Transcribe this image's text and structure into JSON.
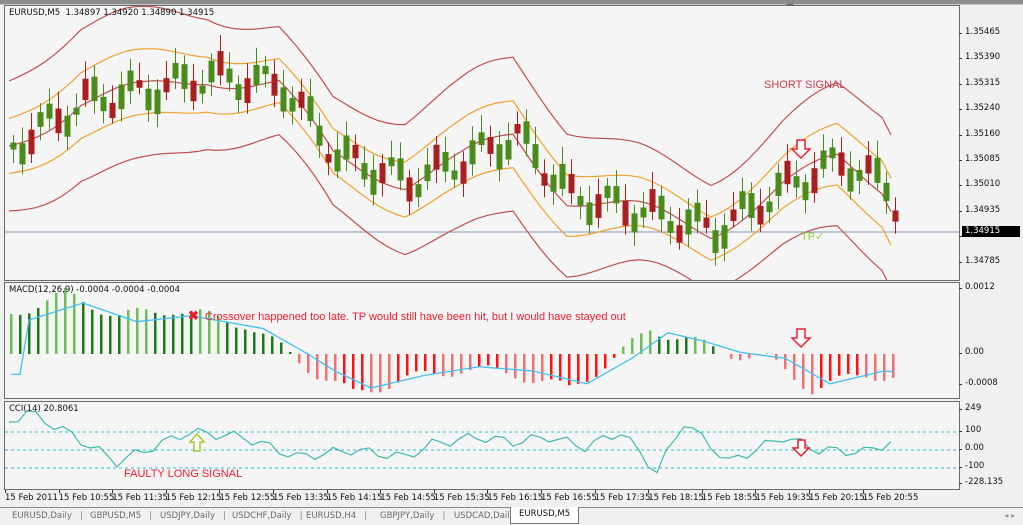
{
  "window": {
    "symbol_header": "EURUSD,M5  1.34897 1.34920 1.34890 1.34915"
  },
  "colors": {
    "bull_candle": "#4a8c1c",
    "bear_candle": "#aa1e1e",
    "outer_band": "#c05050",
    "inner_band": "#f0a030",
    "macd_pos_dark": "#1a7a1a",
    "macd_pos_light": "#6abf5a",
    "macd_neg_dark": "#ff1010",
    "macd_neg_light": "#f07070",
    "signal_line": "#44c0f0",
    "cci_line": "#40b8b0",
    "cci_levels": "#30c0d0",
    "annotation_red": "#ee1c2e",
    "current_price_line": "#8899bb"
  },
  "main_axis": {
    "ticks": [
      "1.35465",
      "1.35390",
      "1.35315",
      "1.35240",
      "1.35160",
      "1.35085",
      "1.35010",
      "1.34935",
      "1.34860",
      "1.34785"
    ],
    "current_price": "1.34915"
  },
  "macd_pane": {
    "label": "MACD(12,26,9) -0.0004 -0.0004 -0.0004",
    "ticks": [
      "0.0012",
      "0.00",
      "-0.0008"
    ]
  },
  "cci_pane": {
    "label": "CCI(14) 20.8061",
    "ticks": [
      "249",
      "100",
      "0.00",
      "-100",
      "-228.135"
    ]
  },
  "annotations": {
    "short_signal": "SHORT SIGNAL",
    "tp": "TP",
    "tp_check": "✓",
    "crossover_icon": "✖",
    "crossover_note": "Crossover happened too late. TP would still have been hit, but I would have stayed out",
    "faulty_long": "FAULTY LONG SIGNAL"
  },
  "x_axis": {
    "labels": [
      "15 Feb 2011",
      "15 Feb 10:55",
      "15 Feb 11:35",
      "15 Feb 12:15",
      "15 Feb 12:55",
      "15 Feb 13:35",
      "15 Feb 14:15",
      "15 Feb 14:55",
      "15 Feb 15:35",
      "15 Feb 16:15",
      "15 Feb 16:55",
      "15 Feb 17:35",
      "15 Feb 18:15",
      "15 Feb 18:55",
      "15 Feb 19:35",
      "15 Feb 20:15",
      "15 Feb 20:55"
    ]
  },
  "tabs": [
    {
      "label": "EURUSD,Daily",
      "active": false
    },
    {
      "label": "GBPUSD,M5",
      "active": false
    },
    {
      "label": "USDJPY,Daily",
      "active": false
    },
    {
      "label": "USDCHF,Daily",
      "active": false
    },
    {
      "label": "EURUSD,H4",
      "active": false
    },
    {
      "label": "GBPJPY,Daily",
      "active": false
    },
    {
      "label": "USDCAD,Daily",
      "active": false
    },
    {
      "label": "EURUSD,M5",
      "active": true
    }
  ],
  "scroll_arrows": "◂  ▸",
  "chart_data": [
    {
      "type": "candlestick",
      "title": "EURUSD,M5",
      "ohlc_header": {
        "open": 1.34897,
        "high": 1.3492,
        "low": 1.3489,
        "close": 1.34915
      },
      "ylim": [
        1.3476,
        1.3552
      ],
      "y_ticks": [
        1.35465,
        1.3539,
        1.35315,
        1.3524,
        1.3516,
        1.35085,
        1.3501,
        1.34935,
        1.3486,
        1.34785
      ],
      "overlays": [
        "Bollinger outer bands (dark red)",
        "Bollinger inner bands (orange)",
        "Bollinger middle (dark red)"
      ],
      "x_ticks": [
        "15 Feb 2011",
        "15 Feb 10:55",
        "15 Feb 11:35",
        "15 Feb 12:15",
        "15 Feb 12:55",
        "15 Feb 13:35",
        "15 Feb 14:15",
        "15 Feb 14:55",
        "15 Feb 15:35",
        "15 Feb 16:15",
        "15 Feb 16:55",
        "15 Feb 17:35",
        "15 Feb 18:15",
        "15 Feb 18:55",
        "15 Feb 19:35",
        "15 Feb 20:15",
        "15 Feb 20:55"
      ],
      "current_price": 1.34915,
      "annotations": [
        "SHORT SIGNAL (down arrow near 15 Feb 19:45)",
        "TP ✓ near 15 Feb 19:55"
      ]
    },
    {
      "type": "bar",
      "title": "MACD(12,26,9)",
      "values_header": [
        -0.0004,
        -0.0004,
        -0.0004
      ],
      "ylim": [
        -0.0008,
        0.0012
      ],
      "y_ticks": [
        0.0012,
        0.0,
        -0.0008
      ],
      "series": [
        {
          "name": "histogram",
          "note": "positive early (~0.001) then negative (~-0.0006) mid, positive ~15 Feb 18:15, negative after 19:40"
        },
        {
          "name": "signal",
          "note": "smooth cyan line"
        }
      ],
      "annotations": [
        "✖ Crossover happened too late. TP would still have been hit, but I would have stayed out"
      ]
    },
    {
      "type": "line",
      "title": "CCI(14)",
      "current_value": 20.8061,
      "ylim": [
        -228.135,
        249
      ],
      "y_ticks": [
        249,
        100,
        0,
        -100,
        -228.135
      ],
      "levels": [
        100,
        0,
        -100
      ],
      "annotations": [
        "FAULTY LONG SIGNAL (up arrow near 15 Feb 12:15)",
        "down arrow near 15 Feb 19:40"
      ]
    }
  ]
}
